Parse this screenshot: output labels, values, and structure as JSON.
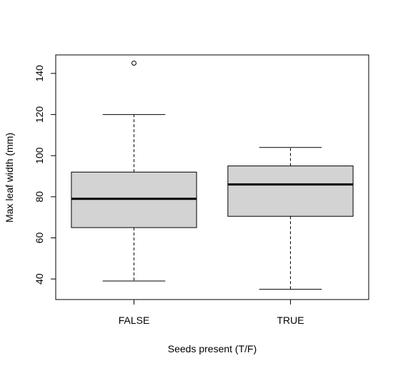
{
  "chart_data": {
    "type": "boxplot",
    "title": "",
    "xlabel": "Seeds present (T/F)",
    "ylabel": "Max leaf width (mm)",
    "ylim": [
      30,
      149
    ],
    "yticks": [
      40,
      60,
      80,
      100,
      120,
      140
    ],
    "categories": [
      "FALSE",
      "TRUE"
    ],
    "boxes": [
      {
        "name": "FALSE",
        "whisker_low": 39,
        "q1": 65,
        "median": 79,
        "q3": 92,
        "whisker_high": 120,
        "outliers": [
          145
        ]
      },
      {
        "name": "TRUE",
        "whisker_low": 35,
        "q1": 70.5,
        "median": 86,
        "q3": 95,
        "whisker_high": 104,
        "outliers": []
      }
    ],
    "colors": {
      "box_fill": "#d3d3d3",
      "stroke": "#000000",
      "background": "#ffffff"
    }
  }
}
